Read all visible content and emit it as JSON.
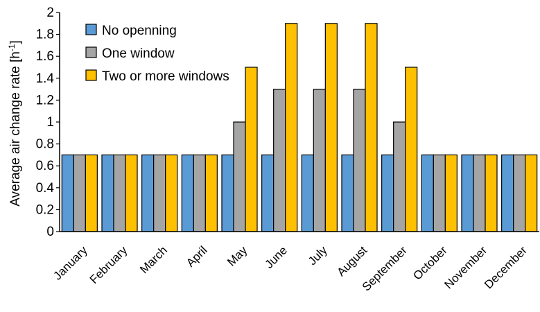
{
  "chart_data": {
    "type": "bar",
    "title": "",
    "xlabel": "",
    "ylabel": "Average air change rate [h",
    "ylabel_superscript": "-1",
    "ylabel_suffix": "]",
    "ylim": [
      0,
      2
    ],
    "yticks": [
      "0",
      "0.2",
      "0.4",
      "0.6",
      "0.8",
      "1",
      "1.2",
      "1.4",
      "1.6",
      "1.8",
      "2"
    ],
    "grid": false,
    "legend_position": "top-left",
    "categories": [
      "January",
      "February",
      "March",
      "April",
      "May",
      "June",
      "July",
      "August",
      "September",
      "October",
      "November",
      "December"
    ],
    "series": [
      {
        "name": "No openning",
        "color": "#5b9bd5",
        "values": [
          0.7,
          0.7,
          0.7,
          0.7,
          0.7,
          0.7,
          0.7,
          0.7,
          0.7,
          0.7,
          0.7,
          0.7
        ]
      },
      {
        "name": "One window",
        "color": "#a5a5a5",
        "values": [
          0.7,
          0.7,
          0.7,
          0.7,
          1.0,
          1.3,
          1.3,
          1.3,
          1.0,
          0.7,
          0.7,
          0.7
        ]
      },
      {
        "name": "Two or more windows",
        "color": "#ffc000",
        "values": [
          0.7,
          0.7,
          0.7,
          0.7,
          1.5,
          1.9,
          1.9,
          1.9,
          1.5,
          0.7,
          0.7,
          0.7
        ]
      }
    ]
  }
}
